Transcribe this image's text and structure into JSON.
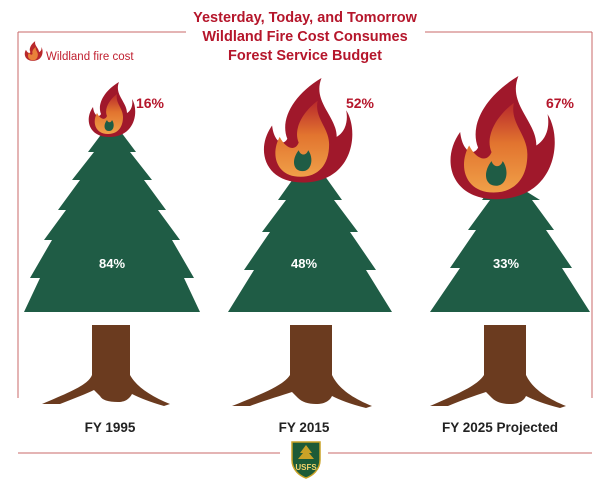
{
  "chart_data": {
    "type": "pictorial",
    "title": [
      "Yesterday, Today, and Tomorrow",
      "Wildland Fire Cost Consumes",
      "Forest Service Budget"
    ],
    "legend": [
      {
        "name": "Wildland fire cost",
        "icon": "flame-icon"
      }
    ],
    "categories": [
      "FY 1995",
      "FY 2015",
      "FY 2025 Projected"
    ],
    "series": [
      {
        "name": "Wildland fire cost",
        "values": [
          16,
          52,
          67
        ],
        "labels": [
          "16%",
          "52%",
          "67%"
        ]
      },
      {
        "name": "",
        "values": [
          84,
          48,
          33
        ],
        "labels": [
          "84%",
          "48%",
          "33%"
        ]
      }
    ]
  },
  "logo": {
    "text": "USFS",
    "icon": "forest-service-shield-icon"
  },
  "colors": {
    "title": "#b5162b",
    "tree": "#1f5c45",
    "trunk": "#6b3b1f",
    "flame_outer": "#a0182b",
    "flame_inner": "#e9813a",
    "flame_core": "#f4a048"
  }
}
